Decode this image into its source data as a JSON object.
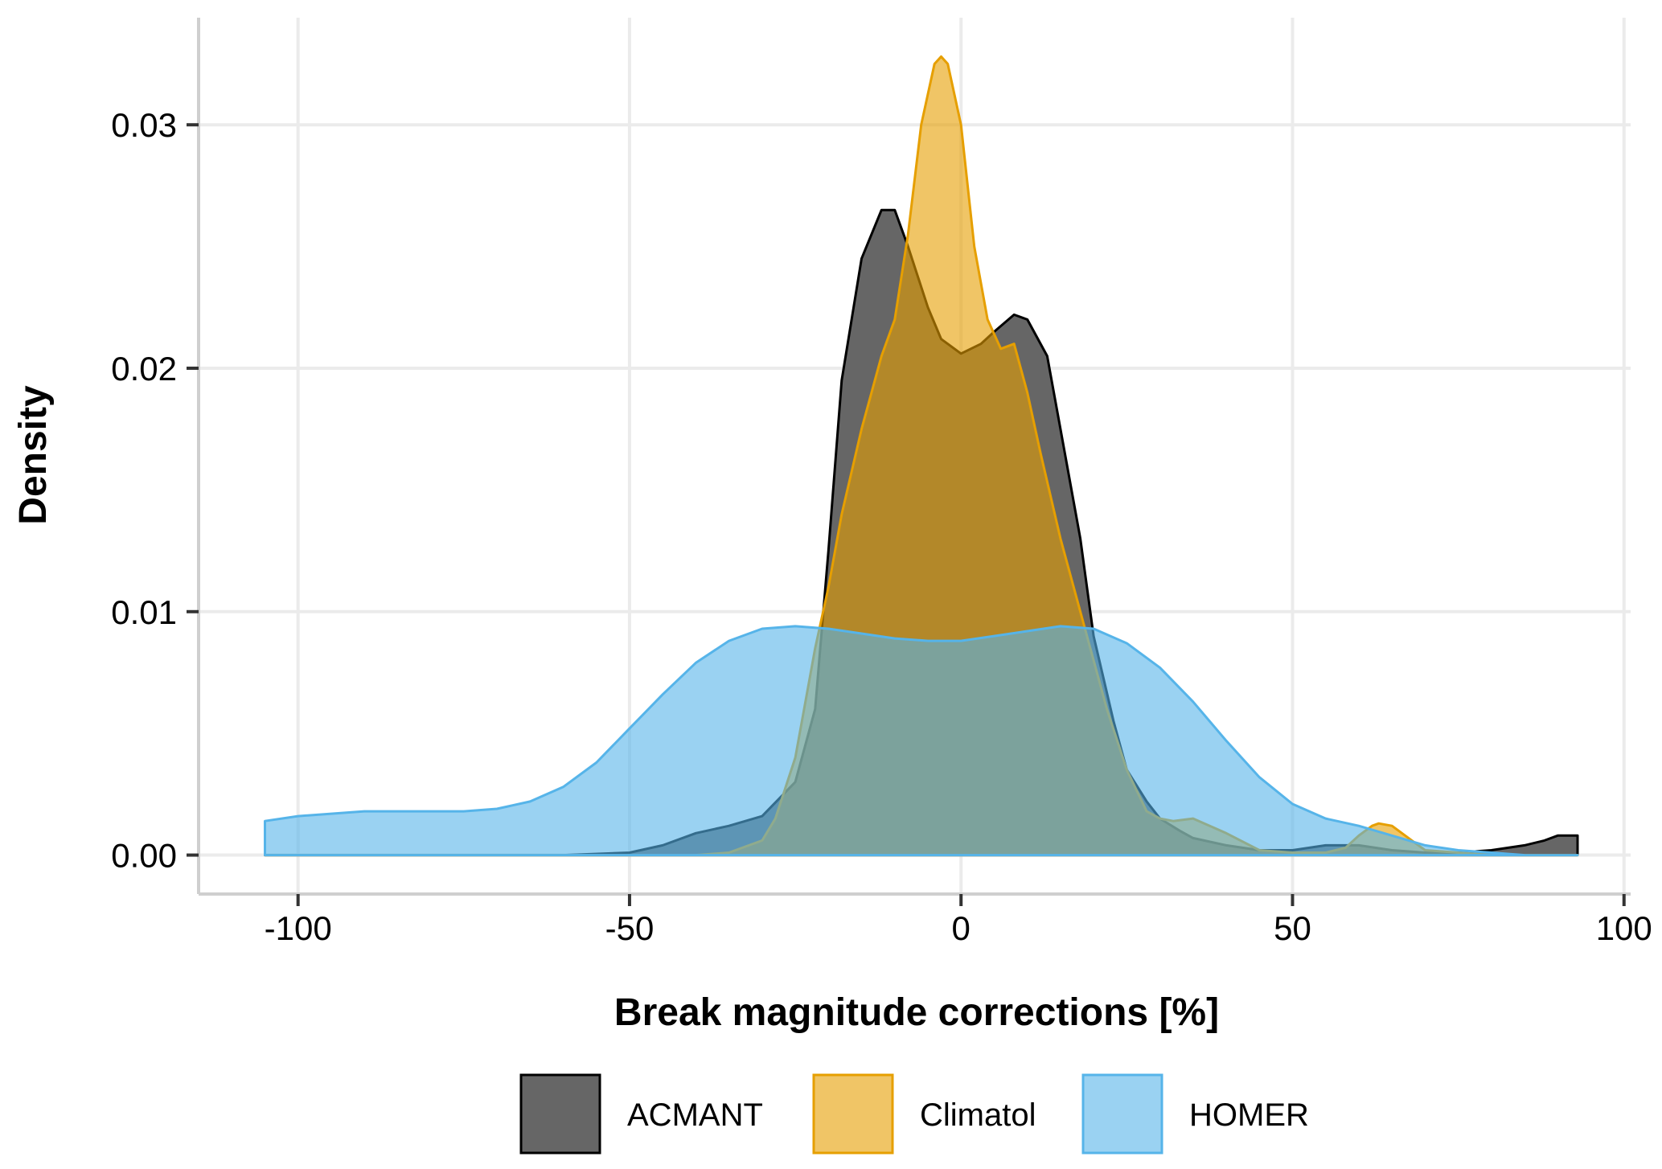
{
  "chart_data": {
    "type": "area",
    "xlabel": "Break magnitude corrections [%]",
    "ylabel": "Density",
    "xlim": [
      -115,
      101
    ],
    "ylim": [
      -0.0016,
      0.0344
    ],
    "x_ticks": [
      -100,
      -50,
      0,
      50,
      100
    ],
    "x_tick_labels": [
      "-100",
      "-50",
      "0",
      "50",
      "100"
    ],
    "y_ticks": [
      0.0,
      0.01,
      0.02,
      0.03
    ],
    "y_tick_labels": [
      "0.00",
      "0.01",
      "0.02",
      "0.03"
    ],
    "grid": true,
    "legend_position": "bottom",
    "series": [
      {
        "name": "ACMANT",
        "fill": "#666666",
        "stroke": "#000000",
        "x": [
          -105,
          -80,
          -60,
          -50,
          -45,
          -40,
          -35,
          -30,
          -25,
          -22,
          -20,
          -18,
          -15,
          -12,
          -10,
          -8,
          -5,
          -3,
          0,
          3,
          5,
          8,
          10,
          13,
          15,
          18,
          20,
          23,
          25,
          28,
          30,
          33,
          35,
          40,
          45,
          50,
          55,
          60,
          65,
          70,
          75,
          80,
          85,
          88,
          90,
          93
        ],
        "y": [
          0.0,
          0.0,
          0.0,
          0.0001,
          0.0004,
          0.0009,
          0.0012,
          0.0016,
          0.003,
          0.006,
          0.0125,
          0.0195,
          0.0245,
          0.0265,
          0.0265,
          0.025,
          0.0225,
          0.0212,
          0.0206,
          0.021,
          0.0215,
          0.0222,
          0.022,
          0.0205,
          0.0175,
          0.013,
          0.009,
          0.0055,
          0.0035,
          0.0022,
          0.0015,
          0.001,
          0.0007,
          0.0004,
          0.0002,
          0.0002,
          0.0004,
          0.0004,
          0.0002,
          0.0001,
          0.0001,
          0.0002,
          0.0004,
          0.0006,
          0.0008,
          0.0008
        ]
      },
      {
        "name": "Climatol",
        "fill": "#E69F00",
        "stroke": "#E69F00",
        "x": [
          -105,
          -60,
          -50,
          -40,
          -35,
          -30,
          -28,
          -25,
          -22,
          -20,
          -18,
          -15,
          -12,
          -10,
          -8,
          -6,
          -4,
          -3,
          -2,
          0,
          2,
          4,
          6,
          8,
          10,
          12,
          15,
          18,
          20,
          22,
          25,
          28,
          30,
          32,
          35,
          40,
          45,
          50,
          55,
          58,
          60,
          62,
          63,
          65,
          68,
          70,
          75,
          80,
          93
        ],
        "y": [
          0.0,
          0.0,
          0.0,
          0.0,
          0.0001,
          0.0006,
          0.0015,
          0.004,
          0.0085,
          0.011,
          0.014,
          0.0175,
          0.0205,
          0.022,
          0.0255,
          0.03,
          0.0325,
          0.0328,
          0.0325,
          0.03,
          0.025,
          0.022,
          0.0208,
          0.021,
          0.019,
          0.0165,
          0.013,
          0.01,
          0.008,
          0.006,
          0.0035,
          0.0018,
          0.0015,
          0.0014,
          0.0015,
          0.0009,
          0.0002,
          0.0001,
          0.0001,
          0.0003,
          0.0008,
          0.0012,
          0.0013,
          0.0012,
          0.0006,
          0.0002,
          0.0001,
          0.0,
          0.0
        ]
      },
      {
        "name": "HOMER",
        "fill": "#56B4E9",
        "stroke": "#56B4E9",
        "x": [
          -105,
          -100,
          -95,
          -90,
          -85,
          -80,
          -75,
          -70,
          -65,
          -60,
          -55,
          -50,
          -45,
          -40,
          -35,
          -30,
          -25,
          -20,
          -15,
          -10,
          -5,
          0,
          5,
          10,
          15,
          20,
          25,
          30,
          35,
          40,
          45,
          50,
          55,
          60,
          65,
          70,
          75,
          80,
          85,
          90,
          93
        ],
        "y": [
          0.0014,
          0.0016,
          0.0017,
          0.0018,
          0.0018,
          0.0018,
          0.0018,
          0.0019,
          0.0022,
          0.0028,
          0.0038,
          0.0052,
          0.0066,
          0.0079,
          0.0088,
          0.0093,
          0.0094,
          0.0093,
          0.0091,
          0.0089,
          0.0088,
          0.0088,
          0.009,
          0.0092,
          0.0094,
          0.0093,
          0.0087,
          0.0077,
          0.0063,
          0.0047,
          0.0032,
          0.0021,
          0.0015,
          0.0012,
          0.0008,
          0.0004,
          0.0002,
          0.0001,
          0.0,
          0.0,
          0.0
        ]
      }
    ]
  }
}
